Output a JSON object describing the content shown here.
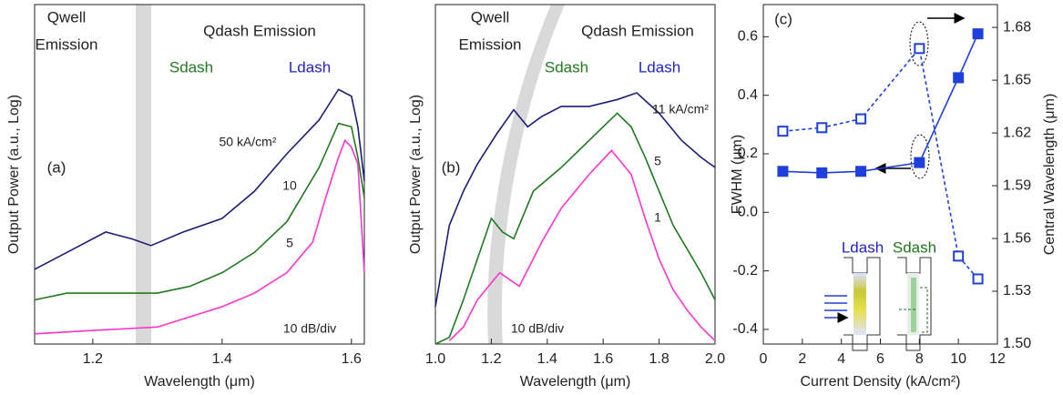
{
  "chart_data": [
    {
      "type": "line",
      "xlabel": "Wavelength (μm)",
      "ylabel": "Output Power (a.u., Log)",
      "xlim": [
        1.11,
        1.62
      ],
      "ylim": [
        0,
        100
      ],
      "xticks": [
        1.2,
        1.4,
        1.6
      ],
      "annotations": [
        "Qwell",
        "Emission",
        "Qdash Emission",
        "Sdash",
        "Ldash",
        "(a)",
        "10 dB/div"
      ],
      "series": [
        {
          "name": "50 kA/cm²",
          "color": "#1c1c7a",
          "x": [
            1.11,
            1.16,
            1.22,
            1.26,
            1.29,
            1.34,
            1.4,
            1.45,
            1.5,
            1.55,
            1.58,
            1.6,
            1.61,
            1.62
          ],
          "values": [
            22,
            27,
            33,
            31,
            29,
            33,
            37,
            45,
            56,
            66,
            75,
            73,
            64,
            48
          ]
        },
        {
          "name": "10",
          "color": "#1f7a1f",
          "x": [
            1.11,
            1.16,
            1.2,
            1.25,
            1.3,
            1.35,
            1.4,
            1.45,
            1.5,
            1.55,
            1.58,
            1.6,
            1.61,
            1.62
          ],
          "values": [
            13,
            15,
            15,
            15,
            15,
            17,
            21,
            27,
            36,
            52,
            65,
            64,
            55,
            43
          ]
        },
        {
          "name": "5",
          "color": "#ff33cc",
          "x": [
            1.11,
            1.2,
            1.3,
            1.35,
            1.4,
            1.45,
            1.5,
            1.54,
            1.56,
            1.58,
            1.59,
            1.6,
            1.61,
            1.62
          ],
          "values": [
            3,
            4,
            5,
            8,
            11,
            15,
            21,
            30,
            43,
            55,
            60,
            58,
            53,
            21
          ]
        }
      ]
    },
    {
      "type": "line",
      "xlabel": "Wavelength (μm)",
      "ylabel": "Output Power (a.u., Log)",
      "xlim": [
        1.0,
        2.0
      ],
      "ylim": [
        0,
        100
      ],
      "xticks": [
        {
          "value": 1,
          "label": "1.0"
        },
        1.2,
        1.4,
        1.6,
        1.8,
        {
          "value": 2,
          "label": "2.0"
        }
      ],
      "annotations": [
        "Qwell",
        "Emission",
        "Qdash Emission",
        "Sdash",
        "Ldash",
        "(b)",
        "10 dB/div"
      ],
      "series": [
        {
          "name": "11 kA/cm²",
          "color": "#1c1c7a",
          "x": [
            1.0,
            1.05,
            1.1,
            1.15,
            1.22,
            1.28,
            1.33,
            1.38,
            1.45,
            1.55,
            1.65,
            1.72,
            1.8,
            1.88,
            1.95,
            2.0
          ],
          "values": [
            11,
            35,
            45,
            53,
            62,
            69,
            64,
            67,
            70,
            70,
            72,
            74,
            68,
            60,
            55,
            52
          ]
        },
        {
          "name": "5",
          "color": "#1f7a1f",
          "x": [
            1.0,
            1.05,
            1.1,
            1.15,
            1.2,
            1.24,
            1.28,
            1.35,
            1.45,
            1.55,
            1.65,
            1.7,
            1.75,
            1.8,
            1.85,
            1.9,
            1.95,
            2.0
          ],
          "values": [
            0,
            2,
            13,
            25,
            37,
            33,
            31,
            45,
            52,
            60,
            68,
            64,
            55,
            45,
            35,
            28,
            21,
            13
          ]
        },
        {
          "name": "1",
          "color": "#ff33cc",
          "x": [
            1.05,
            1.1,
            1.15,
            1.2,
            1.23,
            1.3,
            1.38,
            1.45,
            1.55,
            1.63,
            1.7,
            1.75,
            1.8,
            1.85,
            1.9,
            1.95,
            2.0
          ],
          "values": [
            1,
            5,
            13,
            18,
            21,
            17,
            30,
            40,
            50,
            57,
            50,
            37,
            25,
            16,
            10,
            5,
            1
          ]
        }
      ]
    },
    {
      "type": "line",
      "xlabel": "Current Density (kA/cm²)",
      "ylabel": "FWHM (μm)",
      "y2label": "Central Wavelength (μm)",
      "xlim": [
        0,
        12
      ],
      "ylim": [
        -0.45,
        0.71
      ],
      "y2lim": [
        1.5,
        1.693
      ],
      "xticks": [
        0,
        2,
        4,
        6,
        8,
        10,
        12
      ],
      "yticks": [
        -0.4,
        -0.2,
        {
          "value": 0,
          "label": "0.0"
        },
        0.2,
        0.4,
        0.6
      ],
      "y2ticks": [
        {
          "value": 1.5,
          "label": "1.50"
        },
        1.53,
        1.56,
        1.59,
        1.62,
        1.65,
        1.68
      ],
      "annotations": [
        "(c)",
        "Ldash",
        "Sdash"
      ],
      "x": [
        1,
        3,
        5,
        8,
        10,
        11
      ],
      "series": [
        {
          "color": "#1f3fdd",
          "marker": "filled-square",
          "line_style": "solid",
          "values": [
            0.14,
            0.135,
            0.14,
            0.17,
            0.46,
            0.61
          ]
        },
        {
          "color": "#1f3fdd",
          "marker": "open-square",
          "line_style": "dashed",
          "axis": "y2",
          "values": [
            1.621,
            1.623,
            1.628,
            1.668,
            1.55,
            1.537
          ]
        }
      ]
    }
  ]
}
